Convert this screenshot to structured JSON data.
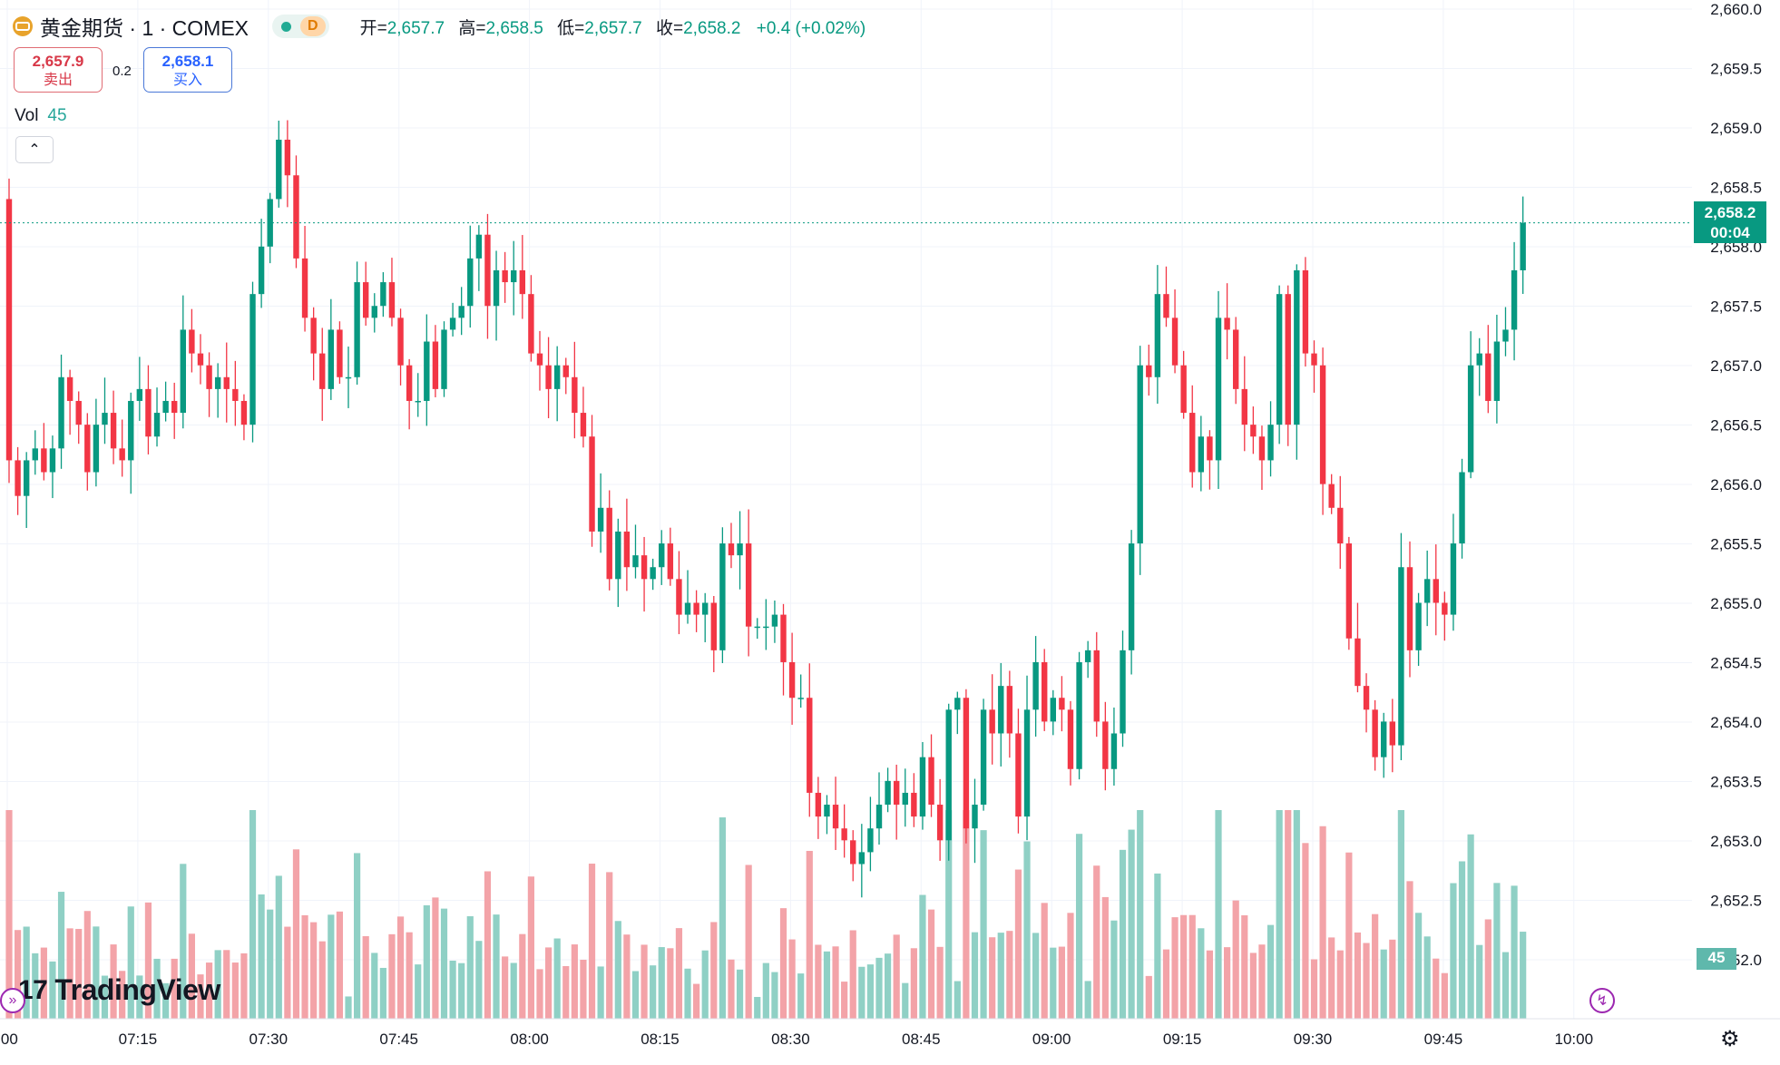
{
  "header": {
    "symbol": "黄金期货 · 1 · COMEX",
    "session_badge": "D",
    "open_label": "开=",
    "open_value": "2,657.7",
    "high_label": "高=",
    "high_value": "2,658.5",
    "low_label": "低=",
    "low_value": "2,657.7",
    "close_label": "收=",
    "close_value": "2,658.2",
    "change": "+0.4 (+0.02%)"
  },
  "trade": {
    "sell_price": "2,657.9",
    "sell_label": "卖出",
    "spread": "0.2",
    "buy_price": "2,658.1",
    "buy_label": "买入"
  },
  "volume": {
    "label": "Vol",
    "value": "45"
  },
  "last_price": {
    "price": "2,658.2",
    "countdown": "00:04"
  },
  "volume_badge": "45",
  "logo": {
    "mark": "17",
    "text": "TradingView"
  },
  "colors": {
    "up": "#089981",
    "down": "#f23645",
    "vol_up": "#8fd0c5",
    "vol_down": "#f3a3a8",
    "grid": "#f0f3fa"
  },
  "icons": {
    "collapse": "chevron-up-icon",
    "settings": "gear-icon",
    "replay": "replay-icon",
    "lightning": "lightning-icon"
  },
  "chart_data": {
    "type": "candlestick",
    "interval": "1 minute",
    "y_ticks": [
      "2,660.0",
      "2,659.5",
      "2,659.0",
      "2,658.5",
      "2,658.0",
      "2,657.5",
      "2,657.0",
      "2,656.5",
      "2,656.0",
      "2,655.5",
      "2,655.0",
      "2,654.5",
      "2,654.0",
      "2,653.5",
      "2,653.0",
      "2,652.5",
      "52.0"
    ],
    "x_ticks": [
      ":00",
      "07:15",
      "07:30",
      "07:45",
      "08:00",
      "08:15",
      "08:30",
      "08:45",
      "09:00",
      "09:15",
      "09:30",
      "09:45",
      "10:00"
    ],
    "candles_close": [
      2656.2,
      2655.9,
      2656.2,
      2656.3,
      2656.1,
      2656.3,
      2656.9,
      2656.7,
      2656.5,
      2656.1,
      2656.5,
      2656.6,
      2656.3,
      2656.2,
      2656.7,
      2656.8,
      2656.4,
      2656.6,
      2656.7,
      2656.6,
      2657.3,
      2657.1,
      2657.0,
      2656.8,
      2656.9,
      2656.8,
      2656.7,
      2656.5,
      2657.6,
      2658.0,
      2658.4,
      2658.9,
      2658.6,
      2657.9,
      2657.4,
      2657.1,
      2656.8,
      2657.3,
      2656.9,
      2656.9,
      2657.7,
      2657.4,
      2657.5,
      2657.7,
      2657.4,
      2657.0,
      2656.7,
      2656.7,
      2657.2,
      2656.8,
      2657.3,
      2657.4,
      2657.5,
      2657.9,
      2658.1,
      2657.5,
      2657.8,
      2657.7,
      2657.8,
      2657.6,
      2657.1,
      2657.0,
      2656.8,
      2657.0,
      2656.9,
      2656.6,
      2656.4,
      2655.6,
      2655.8,
      2655.2,
      2655.6,
      2655.3,
      2655.4,
      2655.2,
      2655.3,
      2655.5,
      2655.2,
      2654.9,
      2655.0,
      2654.9,
      2655.0,
      2654.6,
      2655.5,
      2655.4,
      2655.5,
      2654.8,
      2654.8,
      2654.8,
      2654.9,
      2654.5,
      2654.2,
      2654.2,
      2653.4,
      2653.2,
      2653.3,
      2653.1,
      2653.0,
      2652.8,
      2652.9,
      2653.1,
      2653.3,
      2653.5,
      2653.3,
      2653.4,
      2653.2,
      2653.7,
      2653.3,
      2653.0,
      2654.1,
      2654.2,
      2653.1,
      2653.3,
      2654.1,
      2653.9,
      2654.3,
      2653.9,
      2653.2,
      2654.1,
      2654.5,
      2654.0,
      2654.2,
      2654.1,
      2653.6,
      2654.5,
      2654.6,
      2654.0,
      2653.6,
      2653.9,
      2654.6,
      2655.5,
      2657.0,
      2656.9,
      2657.6,
      2657.4,
      2657.0,
      2656.6,
      2656.1,
      2656.4,
      2656.2,
      2657.4,
      2657.3,
      2656.8,
      2656.5,
      2656.4,
      2656.2,
      2656.5,
      2657.6,
      2656.5,
      2657.8,
      2657.1,
      2657.0,
      2656.0,
      2655.8,
      2655.5,
      2654.7,
      2654.3,
      2654.1,
      2653.7,
      2654.0,
      2653.8,
      2655.3,
      2654.6,
      2655.0,
      2655.2,
      2655.0,
      2654.9,
      2655.5,
      2656.1,
      2657.0,
      2657.1,
      2656.7,
      2657.2,
      2657.3,
      2657.8,
      2658.2
    ],
    "volume_note": "volume histogram below price, bars colored by candle direction; current bar volume 45"
  }
}
